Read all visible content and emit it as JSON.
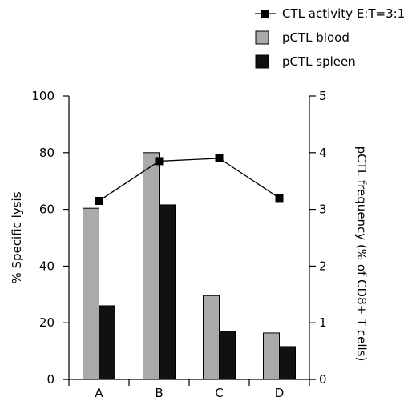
{
  "chart_data": {
    "type": "bar",
    "categories": [
      "A",
      "B",
      "C",
      "D"
    ],
    "series": [
      {
        "name": "pCTL blood",
        "kind": "bar",
        "axis": "right",
        "values": [
          3.02,
          4.0,
          1.48,
          0.82
        ]
      },
      {
        "name": "pCTL spleen",
        "kind": "bar",
        "axis": "right",
        "values": [
          1.3,
          3.08,
          0.85,
          0.58
        ]
      },
      {
        "name": "CTL activity E:T=3:1",
        "kind": "line",
        "axis": "left",
        "values": [
          63,
          77,
          78,
          64
        ]
      }
    ],
    "ylabel_left": "% Specific lysis",
    "ylabel_right": "pCTL frequency (% of CD8+ T cells)",
    "ylim_left": [
      0,
      100
    ],
    "ylim_right": [
      0,
      5
    ],
    "yticks_left": [
      "0",
      "20",
      "40",
      "60",
      "80",
      "100"
    ],
    "yticks_right": [
      "0",
      "1",
      "2",
      "3",
      "4",
      "5"
    ],
    "legend_position": "top-right",
    "colors": {
      "blood": "#aaaaaa",
      "spleen": "#111111",
      "line": "#000000"
    }
  }
}
